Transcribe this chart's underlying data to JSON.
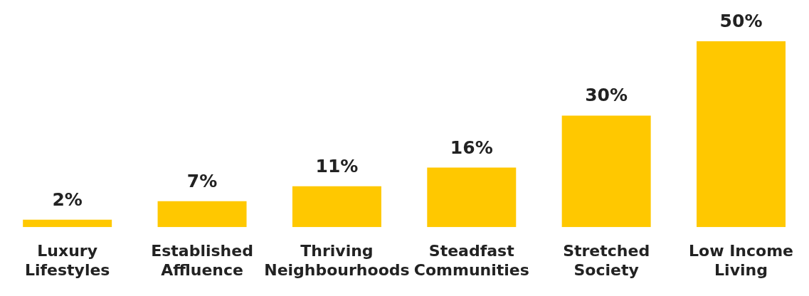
{
  "chart_data": {
    "type": "bar",
    "categories": [
      "Luxury Lifestyles",
      "Established Affluence",
      "Thriving Neighbourhoods",
      "Steadfast Communities",
      "Stretched Society",
      "Low Income Living"
    ],
    "values": [
      2,
      7,
      11,
      16,
      30,
      50
    ],
    "value_labels": [
      "2%",
      "7%",
      "11%",
      "16%",
      "30%",
      "50%"
    ],
    "color": "#ffc800",
    "grid": false,
    "legend": false,
    "tick_labels": "x"
  }
}
